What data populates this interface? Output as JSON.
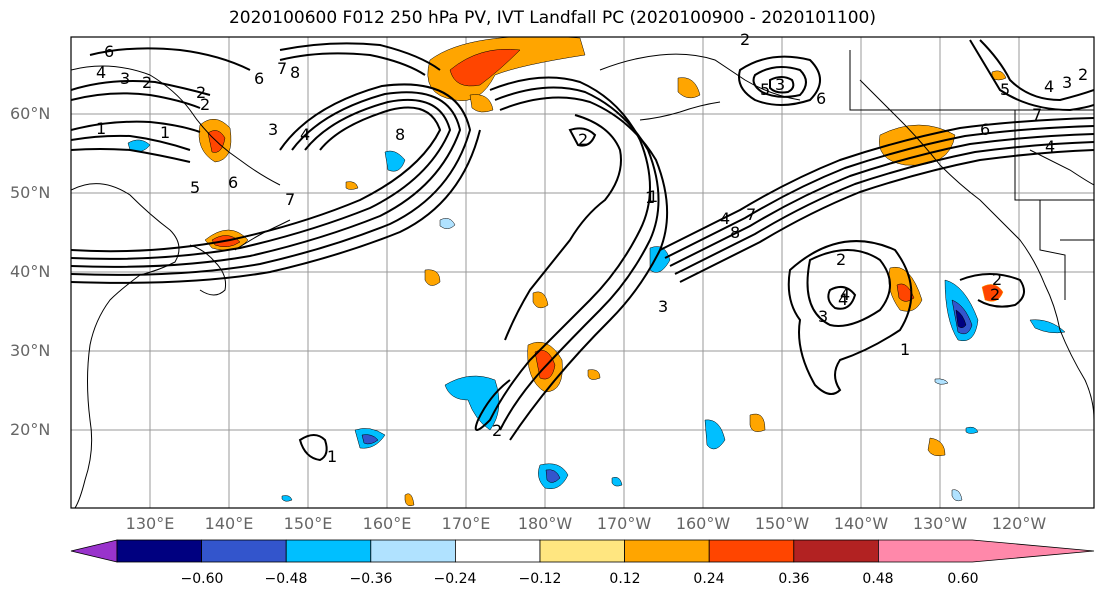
{
  "title": "2020100600 F012 250 hPa PV, IVT Landfall PC (2020100900 - 2020101100)",
  "lat_labels": [
    "60°N",
    "50°N",
    "40°N",
    "30°N",
    "20°N"
  ],
  "lon_labels": [
    "130°E",
    "140°E",
    "150°E",
    "160°E",
    "170°E",
    "180°W",
    "170°W",
    "160°W",
    "150°W",
    "140°W",
    "130°W",
    "120°W"
  ],
  "colorbar": {
    "ticks": [
      "−0.60",
      "−0.48",
      "−0.36",
      "−0.24",
      "−0.12",
      "0.12",
      "0.24",
      "0.36",
      "0.48",
      "0.60"
    ],
    "colors": [
      "#9933cc",
      "#000080",
      "#3355cc",
      "#00bfff",
      "#b0e2ff",
      "#ffffff",
      "#ffe680",
      "#ffa500",
      "#ff4500",
      "#b22222",
      "#ff88aa"
    ]
  },
  "contour_labels": [
    "6",
    "4",
    "3",
    "2",
    "1",
    "6",
    "7",
    "8",
    "1",
    "2",
    "3",
    "4",
    "5",
    "6",
    "7",
    "8",
    "2",
    "1",
    "2",
    "2",
    "3",
    "4",
    "1",
    "2",
    "1",
    "2",
    "3",
    "4",
    "5",
    "6",
    "7",
    "8",
    "2",
    "3",
    "4",
    "5",
    "6",
    "7",
    "1",
    "4",
    "3",
    "2",
    "2",
    "4"
  ]
}
